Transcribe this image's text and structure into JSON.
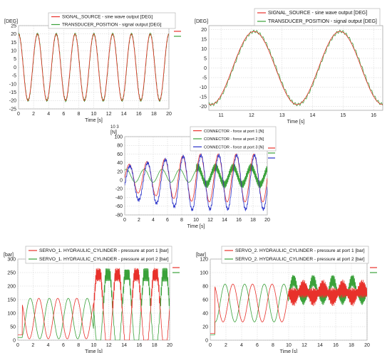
{
  "chart_data": [
    {
      "id": "p1",
      "type": "line",
      "ylabel": "[DEG]",
      "xlabel": "Time [s]",
      "xlim": [
        0,
        20
      ],
      "ylim": [
        -25,
        25
      ],
      "xticks": [
        0,
        2,
        4,
        6,
        8,
        10,
        12,
        14,
        16,
        18,
        20
      ],
      "yticks": [
        25,
        20,
        15,
        10,
        5,
        0,
        -5,
        -10,
        -15,
        -20,
        -25
      ],
      "grid": true,
      "legend_position": "top",
      "series": [
        {
          "name": "SIGNAL_SOURCE   - sine wave output [DEG]",
          "color": "#e8312b"
        },
        {
          "name": "TRANSDUCER_POSITION  - signal output  [DEG]",
          "color": "#3aa13a"
        }
      ],
      "signal": {
        "kind": "sine",
        "amplitude": 20,
        "frequency_hz": 0.4,
        "phase_deg": 90,
        "x_start": 0,
        "x_end": 20,
        "step": 0.025
      }
    },
    {
      "id": "p2",
      "type": "line",
      "ylabel": "[DEG]",
      "xlabel": "Time [s]",
      "xlim": [
        10.6,
        16.3
      ],
      "ylim": [
        -22,
        22
      ],
      "xticks": [
        11,
        12,
        13,
        14,
        15,
        16
      ],
      "yticks": [
        20,
        15,
        10,
        5,
        0,
        -5,
        -10,
        -15,
        -20
      ],
      "grid": true,
      "legend_position": "top",
      "series": [
        {
          "name": "SIGNAL_SOURCE  - sine wave output [DEG]",
          "color": "#e8312b"
        },
        {
          "name": "TRANSDUCER_POSITION - signal output [DEG]",
          "color": "#3aa13a"
        }
      ],
      "signal": {
        "kind": "sine",
        "amplitude": 19,
        "frequency_hz": 0.355,
        "phase_deg": -14,
        "x_start": 10.6,
        "x_end": 16.3,
        "step": 0.008
      }
    },
    {
      "id": "p3",
      "type": "line",
      "ylabel": "[N]",
      "y_multiplier": "10 3",
      "xlabel": "Time [s]",
      "xlim": [
        0,
        20
      ],
      "ylim": [
        -80,
        100
      ],
      "xticks": [
        0,
        2,
        4,
        6,
        8,
        10,
        12,
        14,
        16,
        18,
        20
      ],
      "yticks": [
        100,
        80,
        60,
        40,
        20,
        0,
        -20,
        -40,
        -60,
        -80
      ],
      "grid": true,
      "legend_position": "top-right",
      "series": [
        {
          "name": "CONNECTOR - force at port 1 [N]",
          "color": "#e8312b"
        },
        {
          "name": "CONNECTOR - force at port 2 [N]",
          "color": "#3aa13a"
        },
        {
          "name": "CONNECTOR - force at port 3 [N]",
          "color": "#2830c8"
        }
      ],
      "signal": {
        "kind": "forces",
        "frequency_hz": 0.4,
        "x_start": 0,
        "x_end": 20,
        "step": 0.025
      }
    },
    {
      "id": "p4",
      "type": "line",
      "ylabel": "[bar]",
      "xlabel": "Time [s]",
      "xlim": [
        0,
        20
      ],
      "ylim": [
        0,
        300
      ],
      "xticks": [
        0,
        2,
        4,
        6,
        8,
        10,
        12,
        14,
        16,
        18,
        20
      ],
      "yticks": [
        300,
        250,
        200,
        150,
        100,
        50,
        0
      ],
      "grid": true,
      "legend_position": "top",
      "series": [
        {
          "name": "SERVO_1. HYDRAULIC_CYLINDER  - pressure at port 1 [bar]",
          "color": "#e8312b"
        },
        {
          "name": "SERVO_1. HYDRAULIC_CYLINDER  - pressure at port 2 [bar]",
          "color": "#3aa13a"
        }
      ],
      "signal": {
        "kind": "pressure",
        "base": 80,
        "amp1": 75,
        "amp2": 165,
        "sat": 242,
        "frequency_hz": 0.4,
        "x_start": 0,
        "x_end": 20,
        "step": 0.025
      }
    },
    {
      "id": "p5",
      "type": "line",
      "ylabel": "[bar]",
      "xlabel": "Time [s]",
      "xlim": [
        0,
        20
      ],
      "ylim": [
        0,
        120
      ],
      "xticks": [
        0,
        2,
        4,
        6,
        8,
        10,
        12,
        14,
        16,
        18,
        20
      ],
      "yticks": [
        120,
        100,
        80,
        60,
        40,
        20,
        0
      ],
      "grid": true,
      "legend_position": "top",
      "series": [
        {
          "name": "SERVO_2. HYDRAULIC_CYLINDER  - pressure at port 1 [bar]",
          "color": "#e8312b"
        },
        {
          "name": "SERVO_2. HYDRAULIC_CYLINDER  - pressure at port 2 [bar]",
          "color": "#3aa13a"
        }
      ],
      "signal": {
        "kind": "pressure2",
        "base": 55,
        "amp1": 28,
        "amp2": 30,
        "mid": 70,
        "frequency_hz": 0.4,
        "x_start": 0,
        "x_end": 20,
        "step": 0.025
      }
    }
  ]
}
